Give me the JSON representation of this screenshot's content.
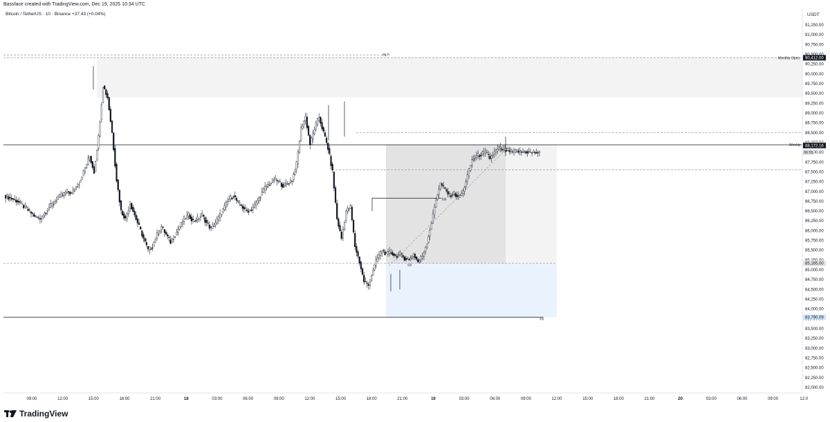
{
  "header": {
    "created_by": "Bassface created with TradingView.com, Dec 19, 2025 10:34 UTC"
  },
  "symbol": {
    "title": "Bitcoin / TetherUS · 10 · Binance",
    "change": "+37.43 (+0.04%)"
  },
  "footer": {
    "brand": "TradingView"
  },
  "colors": {
    "candle": "#131722",
    "zone_gray": "#e3e3e3",
    "zone_light": "#f3f3f3",
    "zone_blue": "#eaf3fd",
    "dashed": "#9598a1",
    "label_bg": "#131722"
  },
  "chart_data": {
    "type": "candlestick",
    "quote_currency": "USDT",
    "ylim": [
      81750,
      91500
    ],
    "y_ticks": [
      82000,
      82250,
      82500,
      82750,
      83000,
      83250,
      83500,
      83750,
      84000,
      84250,
      84500,
      84750,
      85000,
      85250,
      85500,
      85750,
      86000,
      86250,
      86500,
      86750,
      87000,
      87250,
      87500,
      87750,
      88000,
      88250,
      88500,
      88750,
      89000,
      89250,
      89500,
      89750,
      90000,
      90250,
      90500,
      90750,
      91000,
      91250
    ],
    "x_ticks": [
      {
        "label": "09:00",
        "bold": false
      },
      {
        "label": "12:00",
        "bold": false
      },
      {
        "label": "15:00",
        "bold": false
      },
      {
        "label": "18:00",
        "bold": false
      },
      {
        "label": "21:00",
        "bold": false
      },
      {
        "label": "18",
        "bold": true
      },
      {
        "label": "03:00",
        "bold": false
      },
      {
        "label": "06:00",
        "bold": false
      },
      {
        "label": "09:00",
        "bold": false
      },
      {
        "label": "12:00",
        "bold": false
      },
      {
        "label": "15:00",
        "bold": false
      },
      {
        "label": "18:00",
        "bold": false
      },
      {
        "label": "21:00",
        "bold": false
      },
      {
        "label": "19",
        "bold": true
      },
      {
        "label": "03:00",
        "bold": false
      },
      {
        "label": "06:00",
        "bold": false
      },
      {
        "label": "09:00",
        "bold": false
      },
      {
        "label": "12:00",
        "bold": false
      },
      {
        "label": "15:00",
        "bold": false
      },
      {
        "label": "18:00",
        "bold": false
      },
      {
        "label": "21:00",
        "bold": false
      },
      {
        "label": "20",
        "bold": true
      },
      {
        "label": "03:00",
        "bold": false
      },
      {
        "label": "06:00",
        "bold": false
      },
      {
        "label": "09:00",
        "bold": false
      },
      {
        "label": "12:0",
        "bold": false
      }
    ],
    "price_labels": [
      {
        "value": 90412.0,
        "text": "90,412.00"
      },
      {
        "value": 88192.45,
        "text": "88,192.45"
      },
      {
        "value": 88172.16,
        "text": "88,172.16"
      },
      {
        "value": 85165.0,
        "text": "85,165.00"
      },
      {
        "value": 83790.09,
        "text": "83,790.09"
      }
    ],
    "line_labels": [
      {
        "text": "Monthly Open",
        "value": 90412
      },
      {
        "text": "Weekly",
        "value": 88192
      },
      {
        "text": "eq h",
        "value": 90480
      },
      {
        "text": "bsl",
        "value": 86830
      },
      {
        "text": "ssl",
        "value": 85165
      },
      {
        "text": "ssl",
        "value": 83790
      }
    ],
    "small_label": "06:55",
    "price_path": [
      [
        0,
        86900
      ],
      [
        1,
        86850
      ],
      [
        2,
        86800
      ],
      [
        3,
        86750
      ],
      [
        4,
        86650
      ],
      [
        5,
        86550
      ],
      [
        6,
        86450
      ],
      [
        7,
        86350
      ],
      [
        8,
        86300
      ],
      [
        9,
        86450
      ],
      [
        10,
        86600
      ],
      [
        11,
        86700
      ],
      [
        12,
        86850
      ],
      [
        13,
        86900
      ],
      [
        14,
        87000
      ],
      [
        15,
        86950
      ],
      [
        16,
        87100
      ],
      [
        17,
        87300
      ],
      [
        18,
        87600
      ],
      [
        19,
        87900
      ],
      [
        20,
        87500
      ],
      [
        21,
        88400
      ],
      [
        22,
        89700
      ],
      [
        23,
        89400
      ],
      [
        24,
        88500
      ],
      [
        25,
        87300
      ],
      [
        26,
        86500
      ],
      [
        27,
        86300
      ],
      [
        28,
        86700
      ],
      [
        29,
        86400
      ],
      [
        30,
        86100
      ],
      [
        31,
        85800
      ],
      [
        32,
        85500
      ],
      [
        33,
        85600
      ],
      [
        34,
        85900
      ],
      [
        35,
        86100
      ],
      [
        36,
        85900
      ],
      [
        37,
        85700
      ],
      [
        38,
        85900
      ],
      [
        39,
        86100
      ],
      [
        40,
        86300
      ],
      [
        41,
        86400
      ],
      [
        42,
        86250
      ],
      [
        43,
        86300
      ],
      [
        44,
        86400
      ],
      [
        45,
        86200
      ],
      [
        46,
        86050
      ],
      [
        47,
        86200
      ],
      [
        48,
        86400
      ],
      [
        49,
        86600
      ],
      [
        50,
        86800
      ],
      [
        51,
        86900
      ],
      [
        52,
        86700
      ],
      [
        53,
        86600
      ],
      [
        54,
        86500
      ],
      [
        55,
        86550
      ],
      [
        56,
        86700
      ],
      [
        57,
        86900
      ],
      [
        58,
        87100
      ],
      [
        59,
        87200
      ],
      [
        60,
        87300
      ],
      [
        61,
        87250
      ],
      [
        62,
        87150
      ],
      [
        63,
        87200
      ],
      [
        64,
        87300
      ],
      [
        65,
        87700
      ],
      [
        66,
        88600
      ],
      [
        67,
        88900
      ],
      [
        68,
        88200
      ],
      [
        69,
        88600
      ],
      [
        70,
        88900
      ],
      [
        71,
        88500
      ],
      [
        72,
        88100
      ],
      [
        73,
        87500
      ],
      [
        74,
        86300
      ],
      [
        75,
        85800
      ],
      [
        76,
        86500
      ],
      [
        77,
        86600
      ],
      [
        78,
        85600
      ],
      [
        79,
        85200
      ],
      [
        80,
        84700
      ],
      [
        81,
        84600
      ],
      [
        82,
        85000
      ],
      [
        83,
        85300
      ],
      [
        84,
        85500
      ],
      [
        85,
        85400
      ],
      [
        86,
        85450
      ],
      [
        87,
        85350
      ],
      [
        88,
        85400
      ],
      [
        89,
        85300
      ],
      [
        90,
        85250
      ],
      [
        91,
        85400
      ],
      [
        92,
        85200
      ],
      [
        93,
        85350
      ],
      [
        94,
        85700
      ],
      [
        95,
        86200
      ],
      [
        96,
        86800
      ],
      [
        97,
        87200
      ],
      [
        98,
        87050
      ],
      [
        99,
        86900
      ],
      [
        100,
        86950
      ],
      [
        101,
        86850
      ],
      [
        102,
        87000
      ],
      [
        103,
        87400
      ],
      [
        104,
        87800
      ],
      [
        105,
        87900
      ],
      [
        106,
        87950
      ],
      [
        107,
        88000
      ],
      [
        108,
        87850
      ],
      [
        109,
        88000
      ],
      [
        110,
        88100
      ],
      [
        111,
        88050
      ],
      [
        112,
        88050
      ],
      [
        113,
        88000
      ],
      [
        114,
        88030
      ],
      [
        115,
        88000
      ],
      [
        116,
        88020
      ],
      [
        117,
        87990
      ],
      [
        118,
        88000
      ],
      [
        119,
        87980
      ]
    ]
  }
}
